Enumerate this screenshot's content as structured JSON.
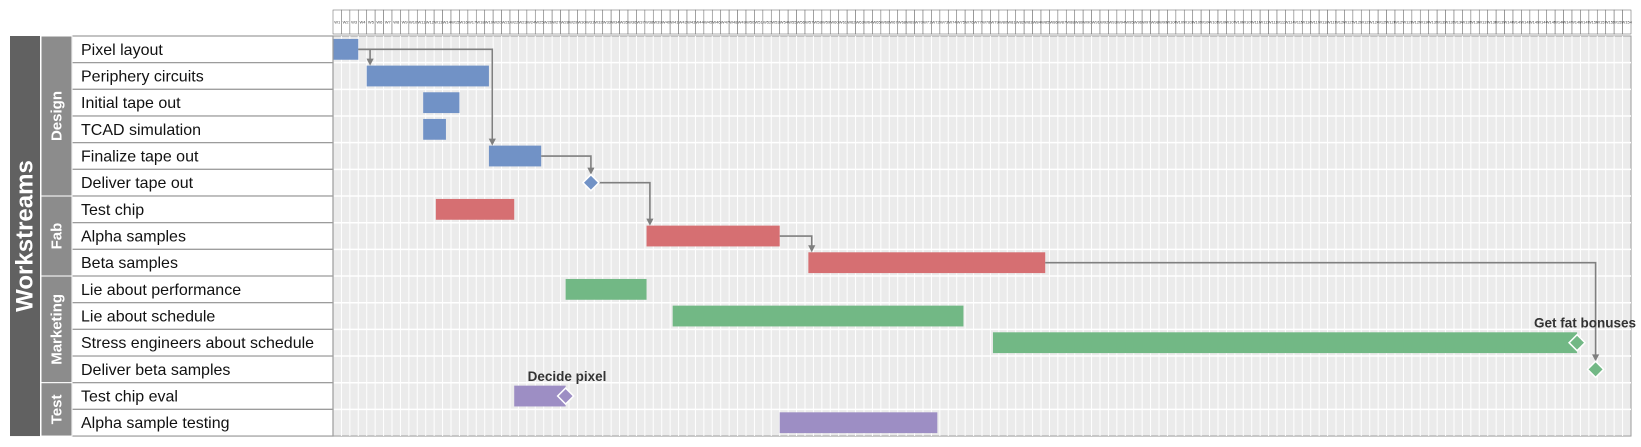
{
  "chart_data": {
    "type": "gantt",
    "workstreams_label": "Workstreams",
    "weeks": [
      "W1",
      "W2",
      "W3",
      "W4",
      "W5",
      "W6",
      "W7",
      "W8",
      "W9",
      "W10",
      "W11",
      "W12",
      "W13",
      "W14",
      "W15",
      "W16",
      "W17",
      "W18",
      "W19",
      "W20",
      "W21",
      "W22",
      "W23",
      "W24",
      "W25",
      "W26",
      "W27",
      "W28",
      "W29",
      "W30",
      "W31",
      "W32",
      "W33",
      "W34",
      "W35",
      "W36",
      "W37",
      "W38",
      "W39",
      "W40",
      "W41",
      "W42",
      "W43",
      "W44",
      "W45",
      "W46",
      "W47",
      "W48",
      "W49",
      "W50",
      "W51",
      "W52",
      "W53",
      "W54",
      "W55",
      "W56",
      "W57",
      "W58",
      "W59",
      "W60",
      "W61",
      "W62",
      "W63",
      "W64",
      "W65",
      "W66",
      "W67",
      "W68",
      "W69",
      "W70",
      "W71",
      "W72",
      "W73",
      "W74",
      "W75",
      "W76",
      "W77",
      "W78",
      "W79",
      "W80",
      "W81",
      "W82",
      "W83",
      "W84",
      "W85",
      "W86",
      "W87",
      "W88",
      "W89",
      "W90",
      "W91",
      "W92",
      "W93",
      "W94",
      "W95",
      "W96",
      "W97",
      "W98",
      "W99",
      "W100",
      "W101",
      "W102",
      "W103",
      "W104",
      "W105",
      "W106",
      "W107",
      "W108",
      "W109",
      "W110",
      "W111",
      "W112",
      "W113",
      "W114",
      "W115",
      "W116",
      "W117",
      "W118",
      "W119",
      "W120",
      "W121",
      "W122",
      "W123",
      "W124",
      "W125",
      "W126",
      "W127",
      "W128",
      "W129",
      "W130",
      "W131",
      "W132",
      "W133",
      "W134",
      "W135",
      "W136",
      "W137",
      "W138",
      "W139",
      "W140",
      "W141",
      "W142",
      "W143",
      "W144",
      "W145",
      "W146",
      "W147",
      "W148",
      "W149",
      "W150",
      "W151",
      "W152",
      "W153",
      "W154"
    ],
    "groups": [
      {
        "name": "Design",
        "color": "#8c8c8c",
        "tasks": [
          {
            "label": "Pixel layout",
            "start": 0,
            "end": 3,
            "color": "#7192c6"
          },
          {
            "label": "Periphery circuits",
            "start": 4,
            "end": 18.5,
            "color": "#7192c6"
          },
          {
            "label": "Initial tape out",
            "start": 10.7,
            "end": 15,
            "color": "#7192c6"
          },
          {
            "label": "TCAD simulation",
            "start": 10.7,
            "end": 13.4,
            "color": "#7192c6"
          },
          {
            "label": "Finalize tape out",
            "start": 18.5,
            "end": 24.7,
            "color": "#7192c6"
          },
          {
            "label": "Deliver tape out",
            "milestone": 30.6,
            "color": "#7192c6"
          }
        ]
      },
      {
        "name": "Fab",
        "color": "#8c8c8c",
        "tasks": [
          {
            "label": "Test chip",
            "start": 12.2,
            "end": 21.5,
            "color": "#d66f72"
          },
          {
            "label": "Alpha samples",
            "start": 37.2,
            "end": 53,
            "color": "#d66f72"
          },
          {
            "label": "Beta samples",
            "start": 56.4,
            "end": 84.5,
            "color": "#d66f72"
          }
        ]
      },
      {
        "name": "Marketing",
        "color": "#8c8c8c",
        "tasks": [
          {
            "label": "Lie about performance",
            "start": 27.6,
            "end": 37.2,
            "color": "#72b885"
          },
          {
            "label": "Lie about schedule",
            "start": 40.3,
            "end": 74.8,
            "color": "#72b885"
          },
          {
            "label": "Stress engineers about schedule",
            "start": 78.3,
            "end": 147.6,
            "color": "#72b885",
            "milestone": 147.6,
            "annotation": "Get fat bonuses"
          },
          {
            "label": "Deliver beta samples",
            "milestone": 149.8,
            "color": "#72b885"
          }
        ]
      },
      {
        "name": "Test",
        "color": "#8c8c8c",
        "tasks": [
          {
            "label": "Test chip eval",
            "start": 21.5,
            "end": 27.6,
            "color": "#9d8ec4",
            "milestone": 27.6,
            "annotation": "Decide pixel"
          },
          {
            "label": "Alpha sample testing",
            "start": 53,
            "end": 71.7,
            "color": "#9d8ec4"
          }
        ]
      }
    ],
    "dependencies": [
      {
        "from": "Pixel layout",
        "to": "Periphery circuits",
        "from_x": 3,
        "to_x": 4.4
      },
      {
        "from": "Pixel layout",
        "to": "Finalize tape out",
        "from_x": 3,
        "to_x": 18.9
      },
      {
        "from": "Finalize tape out",
        "to": "Deliver tape out",
        "from_x": 24.7,
        "to_x": 30.6
      },
      {
        "from": "Deliver tape out",
        "to": "Alpha samples",
        "from_x": 30.6,
        "to_x": 37.6
      },
      {
        "from": "Alpha samples",
        "to": "Beta samples",
        "from_x": 53,
        "to_x": 56.8
      },
      {
        "from": "Beta samples",
        "to": "Deliver beta samples",
        "from_x": 84.5,
        "to_x": 149.8
      }
    ],
    "colors": {
      "workstreams": "#616161",
      "group": "#8c8c8c",
      "plot_bg": "#ebebeb",
      "grid": "#ffffff",
      "arrow": "#7f7f7f"
    }
  }
}
